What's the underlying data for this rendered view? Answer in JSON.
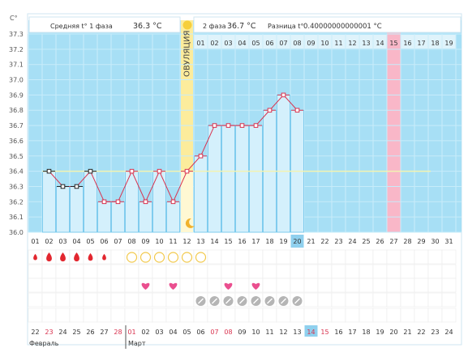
{
  "header": {
    "phase1_label": "Средняя t° 1 фаза",
    "phase1_value": "36.3 °C",
    "phase2_label": "2 фаза",
    "phase2_value": "36.7 °C",
    "diff_label": "Разница t°",
    "diff_value": "0.40000000000001 °C"
  },
  "ovulation_label": "ОВУЛЯЦИЯ",
  "months": {
    "first": "Февраль",
    "second": "Март"
  },
  "colors": {
    "plot_bg": "#a7dff5",
    "bar_fill": "#d4f0fc",
    "bar_stroke": "#6cc4ea",
    "ovulation": "#fcec9c",
    "pink_day": "#f9b7c8",
    "line": "#d9334f",
    "baseline": "#f3f3b0",
    "weekend_text": "#d9334f",
    "highlight_cell": "#8fd0ee",
    "drop": "#e2272f",
    "circle": "#f2c94c",
    "heart": "#ea4f8f",
    "pill": "#b5b5b5"
  },
  "chart_data": {
    "type": "line",
    "y_unit": "C°",
    "ylim": [
      36.0,
      37.3
    ],
    "yticks": [
      "37.3",
      "37.2",
      "37.1",
      "37.0",
      "36.9",
      "36.8",
      "36.7",
      "36.6",
      "36.5",
      "36.4",
      "36.3",
      "36.2",
      "36.1",
      "36.0"
    ],
    "cycle_days": [
      "01",
      "02",
      "03",
      "04",
      "05",
      "06",
      "07",
      "08",
      "09",
      "10",
      "11",
      "12",
      "13",
      "14",
      "15",
      "16",
      "17",
      "18",
      "19",
      "20",
      "21",
      "22",
      "23",
      "24",
      "25",
      "26",
      "27",
      "28",
      "29",
      "30",
      "31"
    ],
    "phase2_header_days": [
      "01",
      "02",
      "03",
      "04",
      "05",
      "06",
      "07",
      "08",
      "09",
      "10",
      "11",
      "12",
      "13",
      "14",
      "15",
      "16",
      "17",
      "18",
      "19"
    ],
    "temperatures": [
      null,
      36.4,
      36.3,
      36.3,
      36.4,
      36.2,
      36.2,
      36.4,
      36.2,
      36.4,
      36.2,
      36.4,
      36.5,
      36.7,
      36.7,
      36.7,
      36.7,
      36.8,
      36.9,
      36.8
    ],
    "phase1_days": [
      2,
      3,
      4,
      5
    ],
    "coverline": 36.4,
    "ovulation_day": 12,
    "pink_header_index": 15,
    "today_cycle_day": "20",
    "calendar_dates": [
      "22",
      "23",
      "24",
      "25",
      "26",
      "27",
      "28",
      "01",
      "02",
      "03",
      "04",
      "05",
      "06",
      "07",
      "08",
      "09",
      "10",
      "11",
      "12",
      "13",
      "14",
      "15",
      "16",
      "17",
      "18",
      "19",
      "20",
      "21",
      "22",
      "23",
      "24"
    ],
    "weekend_indices": [
      1,
      6,
      7,
      13,
      14,
      20,
      21
    ],
    "today_calendar_index": 20,
    "month_break_index": 8
  },
  "symptoms": {
    "drops": [
      {
        "day": 1,
        "size": "s"
      },
      {
        "day": 2,
        "size": "l"
      },
      {
        "day": 3,
        "size": "l"
      },
      {
        "day": 4,
        "size": "l"
      },
      {
        "day": 5,
        "size": "m"
      },
      {
        "day": 6,
        "size": "s"
      }
    ],
    "circles": [
      8,
      9,
      10,
      11,
      12,
      13
    ],
    "hearts": [
      9,
      11,
      15,
      17
    ],
    "pills": [
      13,
      14,
      15,
      16,
      17,
      18,
      19,
      20
    ]
  }
}
